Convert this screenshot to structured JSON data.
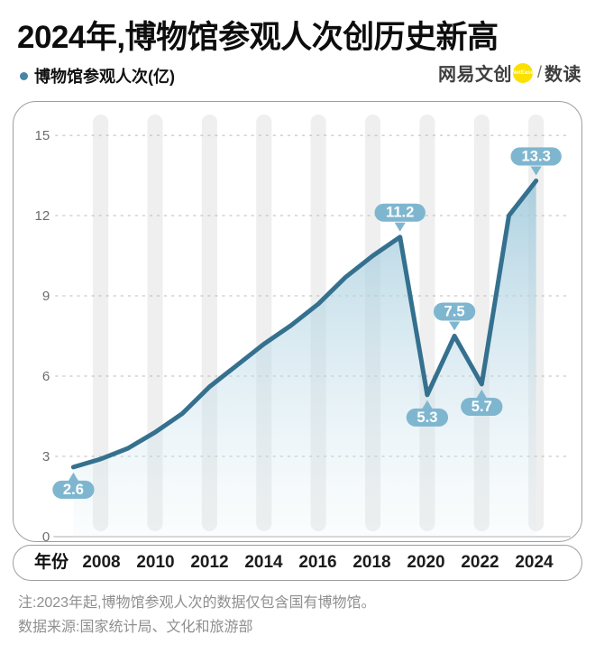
{
  "header": {
    "title": "2024年,博物馆参观人次创历史新高",
    "legend_label": "博物馆参观人次(亿)",
    "brand": {
      "name": "网易文创",
      "badge": "NetEase",
      "separator": "/",
      "product": "数读"
    }
  },
  "footnotes": [
    "注:2023年起,博物馆参观人次的数据仅包含国有博物馆。",
    "数据来源:国家统计局、文化和旅游部"
  ],
  "colors": {
    "line": "#35718F",
    "area_top": "#96C4D8",
    "area_bottom": "#D9EBF2",
    "pill": "#7FB6CF",
    "pill_text": "#FFFFFF",
    "grid": "#B8B8B8",
    "zero_line": "#C9C9C9",
    "bar": "#EFEFEF",
    "y_tick_text": "#6B6B6B",
    "legend_dot": "#4786A6",
    "badge_yellow": "#FBE000"
  },
  "chart_data": {
    "type": "line",
    "title": "2024年,博物馆参观人次创历史新高",
    "series_name": "博物馆参观人次(亿)",
    "x_axis_title": "年份",
    "x": [
      2007,
      2008,
      2009,
      2010,
      2011,
      2012,
      2013,
      2014,
      2015,
      2016,
      2017,
      2018,
      2019,
      2020,
      2021,
      2022,
      2023,
      2024
    ],
    "values": [
      2.6,
      2.9,
      3.3,
      3.9,
      4.6,
      5.6,
      6.4,
      7.2,
      7.9,
      8.7,
      9.7,
      10.5,
      11.2,
      5.3,
      7.5,
      5.7,
      12.0,
      13.3
    ],
    "point_labels": [
      {
        "year": 2007,
        "label": "2.6",
        "placement": "below"
      },
      {
        "year": 2019,
        "label": "11.2",
        "placement": "above"
      },
      {
        "year": 2020,
        "label": "5.3",
        "placement": "below"
      },
      {
        "year": 2021,
        "label": "7.5",
        "placement": "above"
      },
      {
        "year": 2022,
        "label": "5.7",
        "placement": "below"
      },
      {
        "year": 2024,
        "label": "13.3",
        "placement": "above"
      }
    ],
    "y_ticks": [
      0,
      3,
      6,
      9,
      12,
      15
    ],
    "x_ticks": [
      2008,
      2010,
      2012,
      2014,
      2016,
      2018,
      2020,
      2022,
      2024
    ],
    "ylim": [
      0,
      15
    ],
    "grid": true,
    "legend_position": "top-left"
  }
}
